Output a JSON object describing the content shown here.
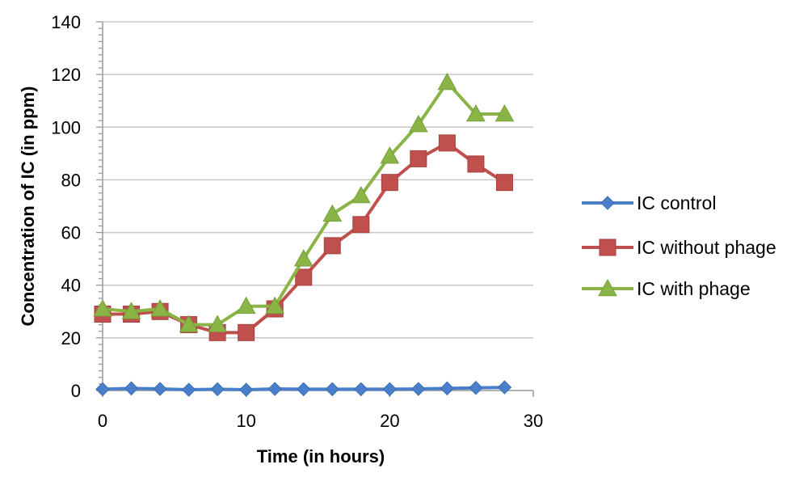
{
  "chart_data": {
    "type": "line",
    "title": "",
    "xlabel": "Time (in hours)",
    "ylabel": "Concentration of IC (in ppm)",
    "xlim": [
      0,
      30
    ],
    "ylim": [
      0,
      140
    ],
    "x_ticks": [
      0,
      10,
      20,
      30
    ],
    "y_ticks": [
      0,
      20,
      40,
      60,
      80,
      100,
      120,
      140
    ],
    "grid": "horizontal",
    "legend_position": "right",
    "x": [
      0,
      2,
      4,
      6,
      8,
      10,
      12,
      14,
      16,
      18,
      20,
      22,
      24,
      26,
      28
    ],
    "series": [
      {
        "name": "IC control",
        "marker": "diamond",
        "color": "#4a7fcb",
        "values": [
          0.5,
          0.8,
          0.6,
          0.3,
          0.5,
          0.3,
          0.6,
          0.5,
          0.5,
          0.5,
          0.5,
          0.6,
          0.8,
          1.0,
          1.2
        ]
      },
      {
        "name": "IC without phage",
        "marker": "square",
        "color": "#c0504d",
        "values": [
          29,
          29,
          30,
          25,
          22,
          22,
          31,
          43,
          55,
          63,
          79,
          88,
          94,
          86,
          79
        ]
      },
      {
        "name": "IC with phage",
        "marker": "triangle",
        "color": "#8ab446",
        "values": [
          31,
          30,
          31,
          25,
          25,
          32,
          32,
          50,
          67,
          74,
          89,
          101,
          117,
          105,
          105
        ]
      }
    ]
  }
}
